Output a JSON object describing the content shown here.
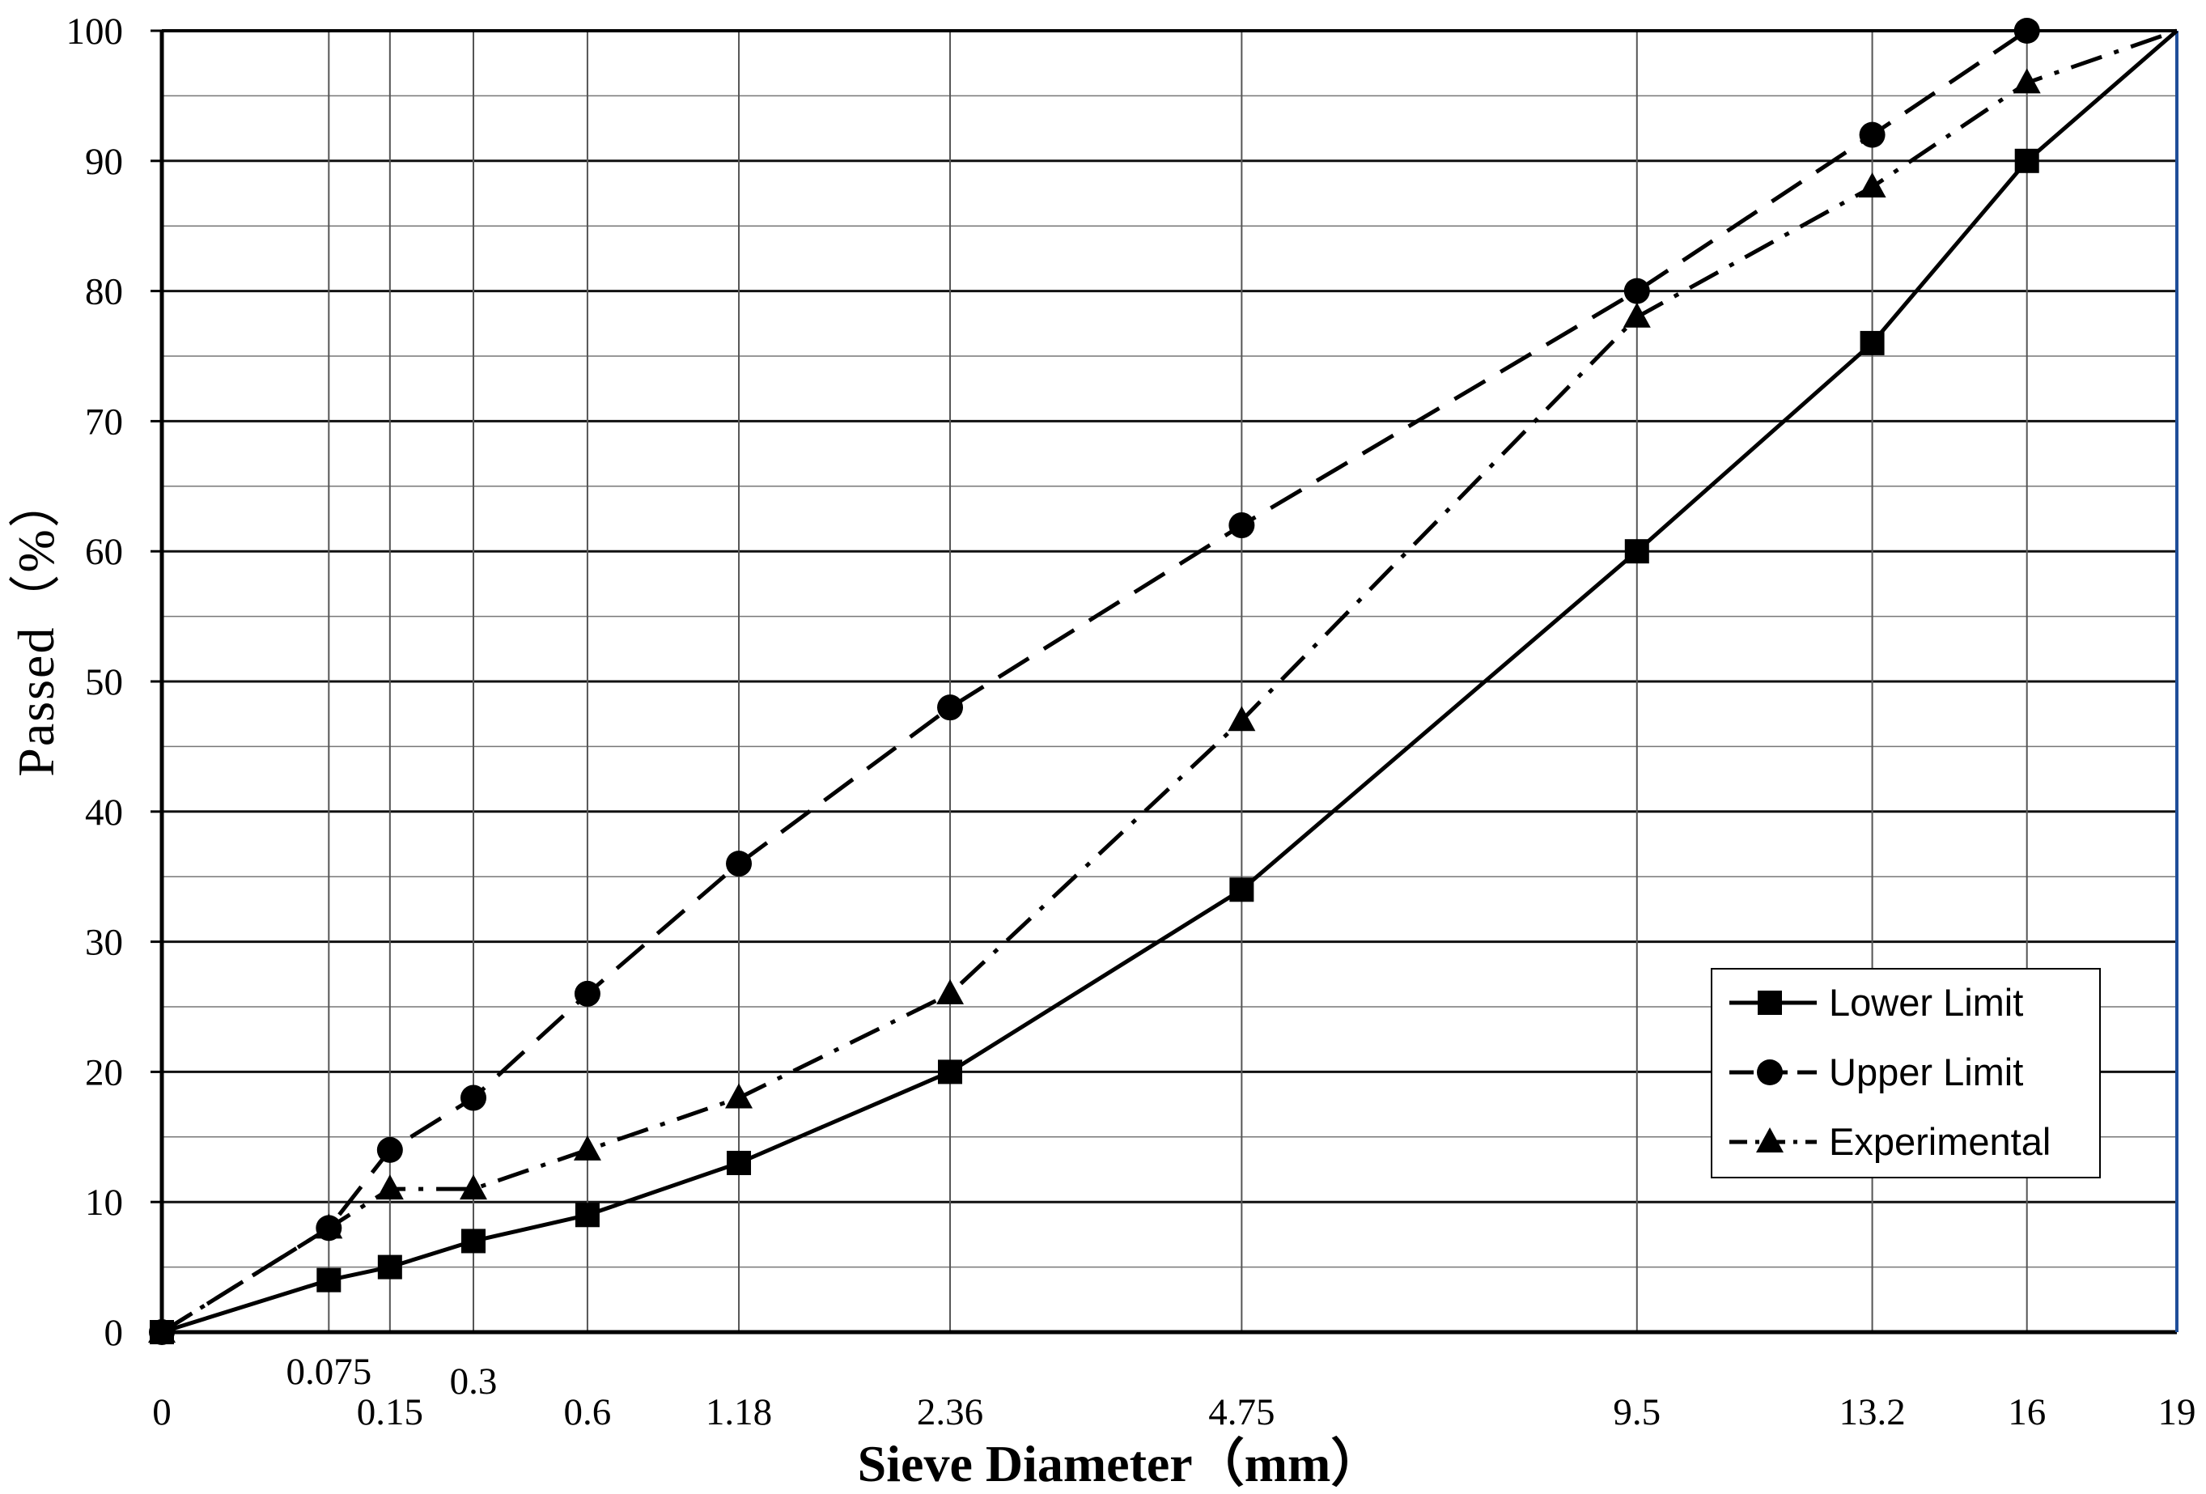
{
  "chart_data": {
    "type": "line",
    "xlabel": "Sieve Diameter（mm）",
    "ylabel": "Passed（%）",
    "x_scale": "categorical-power",
    "x_power": 0.45,
    "xlim": [
      0,
      19
    ],
    "ylim": [
      0,
      100
    ],
    "y_major_step": 10,
    "y_minor_step": 5,
    "grid": true,
    "x_tick_labels": [
      "0",
      "0.075",
      "0.15",
      "0.3",
      "0.6",
      "1.18",
      "2.36",
      "4.75",
      "9.5",
      "13.2",
      "16",
      "19"
    ],
    "x_tick_values": [
      0,
      0.075,
      0.15,
      0.3,
      0.6,
      1.18,
      2.36,
      4.75,
      9.5,
      13.2,
      16,
      19
    ],
    "y_tick_labels": [
      "0",
      "10",
      "20",
      "30",
      "40",
      "50",
      "60",
      "70",
      "80",
      "90",
      "100"
    ],
    "series": [
      {
        "name": "Lower Limit",
        "marker": "square",
        "line": "solid",
        "points": [
          [
            0,
            0
          ],
          [
            0.075,
            4
          ],
          [
            0.15,
            5
          ],
          [
            0.3,
            7
          ],
          [
            0.6,
            9
          ],
          [
            1.18,
            13
          ],
          [
            2.36,
            20
          ],
          [
            4.75,
            34
          ],
          [
            9.5,
            60
          ],
          [
            13.2,
            76
          ],
          [
            16,
            90
          ],
          [
            19,
            100
          ]
        ]
      },
      {
        "name": "Upper Limit",
        "marker": "circle",
        "line": "dashed",
        "points": [
          [
            0,
            0
          ],
          [
            0.075,
            8
          ],
          [
            0.15,
            14
          ],
          [
            0.3,
            18
          ],
          [
            0.6,
            26
          ],
          [
            1.18,
            36
          ],
          [
            2.36,
            48
          ],
          [
            4.75,
            62
          ],
          [
            9.5,
            80
          ],
          [
            13.2,
            92
          ],
          [
            16,
            100
          ]
        ]
      },
      {
        "name": "Experimental",
        "marker": "triangle",
        "line": "dashdot",
        "points": [
          [
            0,
            0
          ],
          [
            0.075,
            8
          ],
          [
            0.15,
            11
          ],
          [
            0.3,
            11
          ],
          [
            0.6,
            14
          ],
          [
            1.18,
            18
          ],
          [
            2.36,
            26
          ],
          [
            4.75,
            47
          ],
          [
            9.5,
            78
          ],
          [
            13.2,
            88
          ],
          [
            16,
            96
          ],
          [
            19,
            100
          ]
        ]
      }
    ],
    "legend_position": "bottom-right",
    "colors": {
      "series": "#000000",
      "grid": "#000000",
      "right_axis": "#1f4e99",
      "background": "#ffffff"
    }
  }
}
